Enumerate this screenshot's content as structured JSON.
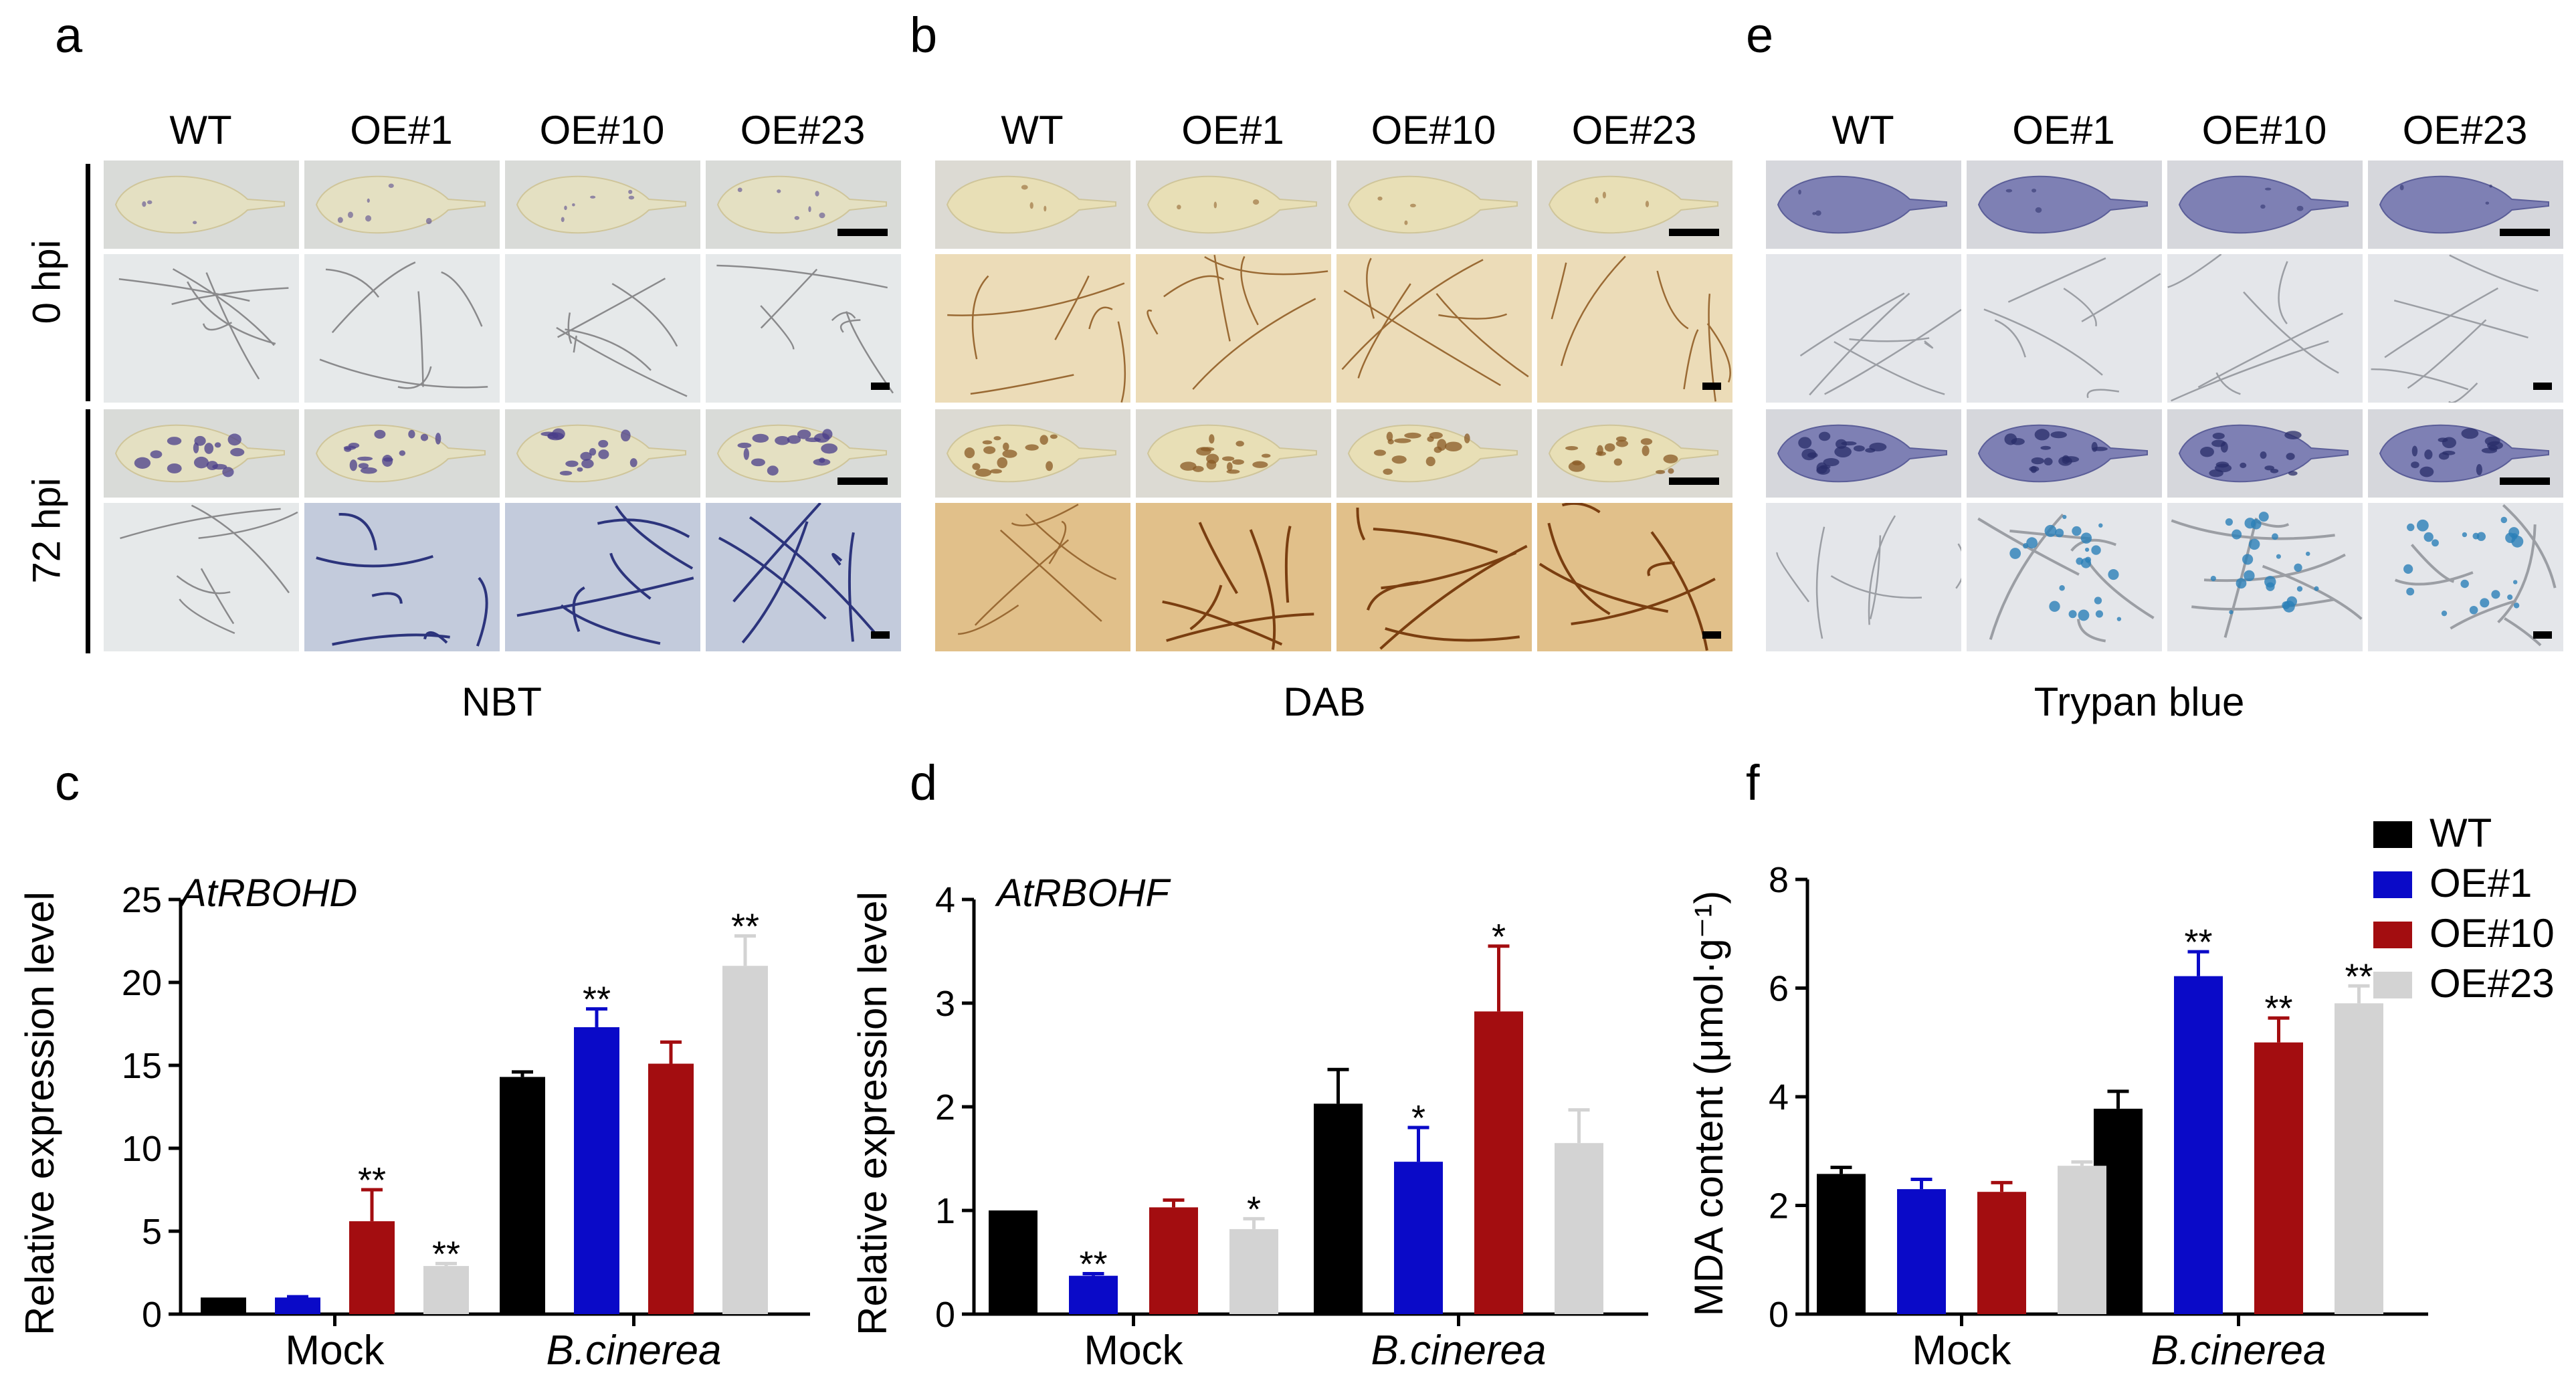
{
  "panels": {
    "a": {
      "letter": "a",
      "stain": "NBT"
    },
    "b": {
      "letter": "b",
      "stain": "DAB"
    },
    "e": {
      "letter": "e",
      "stain": "Trypan blue"
    }
  },
  "columns": [
    "WT",
    "OE#1",
    "OE#10",
    "OE#23"
  ],
  "rows": [
    "0 hpi",
    "72 hpi"
  ],
  "colors": {
    "WT": "#000000",
    "OE#1": "#0a0ac8",
    "OE#10": "#a30d10",
    "OE#23": "#d3d3d3",
    "nbt_bg": "#d9dbd8",
    "nbt_leaf": "#e4e0c2",
    "nbt_micro": "#e6e9ea",
    "nbt_vein": "#8a8a8c",
    "nbt_vein_dark": "#2c347c",
    "dab_bg": "#dcdad3",
    "dab_leaf": "#e8dfb6",
    "dab_micro": "#ecdcb8",
    "dab_vein": "#9a6a34",
    "dab_vein_dark": "#7a3e10",
    "tb_bg": "#d6d7dc",
    "tb_leaf": "#7e80b4",
    "tb_micro": "#e4e6ea",
    "tb_vein": "#9b9ea4",
    "tb_spot": "#2a7fb8"
  },
  "chart_data": [
    {
      "panel": "c",
      "type": "bar",
      "title": "AtRBOHD",
      "ylabel": "Relative expression level",
      "xlabel": "",
      "categories": [
        "Mock",
        "B.cinerea"
      ],
      "ylim": [
        0,
        25
      ],
      "yticks": [
        0,
        5,
        10,
        15,
        20,
        25
      ],
      "series": [
        {
          "name": "WT",
          "values": [
            1.0,
            14.3
          ],
          "errors": [
            0.0,
            0.3
          ],
          "sig": [
            "",
            ""
          ]
        },
        {
          "name": "OE#1",
          "values": [
            1.0,
            17.3
          ],
          "errors": [
            0.05,
            1.1
          ],
          "sig": [
            "",
            "**"
          ]
        },
        {
          "name": "OE#10",
          "values": [
            5.6,
            15.1
          ],
          "errors": [
            1.9,
            1.3
          ],
          "sig": [
            "**",
            ""
          ]
        },
        {
          "name": "OE#23",
          "values": [
            2.9,
            21.0
          ],
          "errors": [
            0.15,
            1.8
          ],
          "sig": [
            "**",
            "**"
          ]
        }
      ]
    },
    {
      "panel": "d",
      "type": "bar",
      "title": "AtRBOHF",
      "ylabel": "Relative expression level",
      "xlabel": "",
      "categories": [
        "Mock",
        "B.cinerea"
      ],
      "ylim": [
        0,
        4
      ],
      "yticks": [
        0,
        1,
        2,
        3,
        4
      ],
      "series": [
        {
          "name": "WT",
          "values": [
            1.0,
            2.03
          ],
          "errors": [
            0.0,
            0.33
          ],
          "sig": [
            "",
            ""
          ]
        },
        {
          "name": "OE#1",
          "values": [
            0.37,
            1.47
          ],
          "errors": [
            0.02,
            0.33
          ],
          "sig": [
            "**",
            "*"
          ]
        },
        {
          "name": "OE#10",
          "values": [
            1.03,
            2.92
          ],
          "errors": [
            0.07,
            0.63
          ],
          "sig": [
            "",
            "*"
          ]
        },
        {
          "name": "OE#23",
          "values": [
            0.82,
            1.65
          ],
          "errors": [
            0.1,
            0.32
          ],
          "sig": [
            "*",
            ""
          ]
        }
      ]
    },
    {
      "panel": "f",
      "type": "bar",
      "title": "",
      "ylabel": "MDA content (μmol·g⁻¹)",
      "xlabel": "",
      "categories": [
        "Mock",
        "B.cinerea"
      ],
      "ylim": [
        0,
        8
      ],
      "yticks": [
        0,
        2,
        4,
        6,
        8
      ],
      "legend": "top-right",
      "series": [
        {
          "name": "WT",
          "values": [
            2.58,
            3.78
          ],
          "errors": [
            0.12,
            0.32
          ],
          "sig": [
            "",
            ""
          ]
        },
        {
          "name": "OE#1",
          "values": [
            2.3,
            6.22
          ],
          "errors": [
            0.18,
            0.45
          ],
          "sig": [
            "",
            "**"
          ]
        },
        {
          "name": "OE#10",
          "values": [
            2.25,
            5.0
          ],
          "errors": [
            0.17,
            0.45
          ],
          "sig": [
            "",
            "**"
          ]
        },
        {
          "name": "OE#23",
          "values": [
            2.73,
            5.72
          ],
          "errors": [
            0.07,
            0.32
          ],
          "sig": [
            "",
            "**"
          ]
        }
      ]
    }
  ]
}
